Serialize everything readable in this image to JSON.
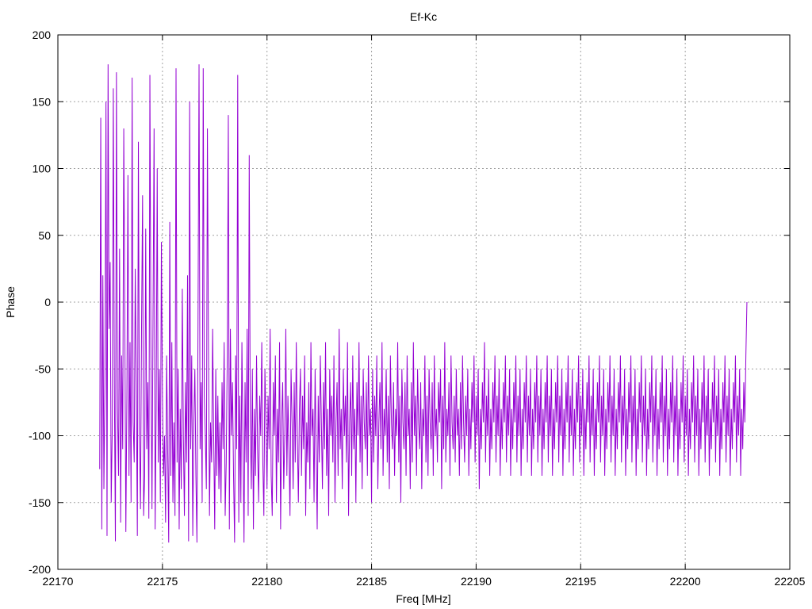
{
  "chart_data": {
    "type": "line",
    "title": "Ef-Kc",
    "xlabel": "Freq [MHz]",
    "ylabel": "Phase",
    "xlim": [
      22170,
      22205
    ],
    "ylim": [
      -200,
      200
    ],
    "x_ticks": [
      22170,
      22175,
      22180,
      22185,
      22190,
      22195,
      22200,
      22205
    ],
    "y_ticks": [
      -200,
      -150,
      -100,
      -50,
      0,
      50,
      100,
      150,
      200
    ],
    "x_tick_labels": [
      "22170",
      "22175",
      "22180",
      "22185",
      "22190",
      "22195",
      "22200",
      "22205"
    ],
    "y_tick_labels": [
      "-200",
      "-150",
      "-100",
      "-50",
      "0",
      "50",
      "100",
      "150",
      "200"
    ],
    "grid": true,
    "legend": "none",
    "series": [
      {
        "color": "#9400d3",
        "x_start": 22172.0,
        "x_step": 0.05,
        "y": [
          -125,
          138,
          -170,
          20,
          -140,
          -60,
          150,
          -175,
          178,
          -20,
          30,
          -150,
          -95,
          160,
          -60,
          -179,
          172,
          -80,
          -130,
          40,
          -165,
          -40,
          -110,
          130,
          -10,
          -172,
          -70,
          95,
          -130,
          -30,
          -150,
          168,
          -90,
          -120,
          25,
          -60,
          -175,
          120,
          -100,
          -155,
          -20,
          80,
          -160,
          -130,
          55,
          -110,
          -60,
          -162,
          170,
          -40,
          -155,
          -10,
          130,
          -170,
          -80,
          100,
          -120,
          -50,
          -150,
          45,
          -70,
          -130,
          -100,
          -165,
          -40,
          -110,
          -180,
          60,
          -130,
          -30,
          -150,
          -90,
          -160,
          175,
          -120,
          -50,
          -170,
          -80,
          -140,
          10,
          -100,
          -160,
          -60,
          -120,
          20,
          -179,
          150,
          -110,
          -40,
          -175,
          -90,
          -50,
          -130,
          -180,
          -20,
          178,
          -110,
          -60,
          -150,
          175,
          -70,
          -100,
          -140,
          130,
          -30,
          -160,
          -90,
          -120,
          -20,
          -100,
          -170,
          -50,
          -130,
          -70,
          -140,
          -90,
          -150,
          -60,
          -110,
          -30,
          -160,
          -120,
          -40,
          140,
          -170,
          -20,
          -100,
          -60,
          -130,
          -180,
          -40,
          -110,
          170,
          -165,
          -70,
          -150,
          -30,
          -100,
          -180,
          -60,
          -120,
          -20,
          -160,
          110,
          -90,
          -140,
          -50,
          -170,
          -80,
          -130,
          -40,
          -110,
          -150,
          -70,
          -100,
          -30,
          -120,
          -160,
          -50,
          -90,
          -140,
          -70,
          -110,
          -20,
          -130,
          -160,
          -60,
          -100,
          -40,
          -150,
          -80,
          -120,
          -30,
          -170,
          -90,
          -60,
          -140,
          -100,
          -20,
          -130,
          -70,
          -110,
          -160,
          -50,
          -90,
          -140,
          -60,
          -120,
          -30,
          -100,
          -150,
          -80,
          -50,
          -130,
          -70,
          -110,
          -40,
          -160,
          -90,
          -120,
          -60,
          -140,
          -30,
          -100,
          -80,
          -150,
          -50,
          -110,
          -170,
          -70,
          -120,
          -40,
          -90,
          -140,
          -60,
          -110,
          -30,
          -130,
          -80,
          -160,
          -50,
          -100,
          -70,
          -120,
          -40,
          -150,
          -90,
          -60,
          -130,
          -20,
          -110,
          -80,
          -140,
          -50,
          -100,
          -70,
          -120,
          -30,
          -160,
          -90,
          -60,
          -130,
          -40,
          -110,
          -80,
          -150,
          -60,
          -100,
          -30,
          -120,
          -70,
          -140,
          -50,
          -90,
          -110,
          -60,
          -130,
          -40,
          -100,
          -80,
          -150,
          -50,
          -120,
          -70,
          -100,
          -40,
          -140,
          -90,
          -60,
          -110,
          -30,
          -130,
          -80,
          -100,
          -50,
          -120,
          -70,
          -140,
          -40,
          -90,
          -110,
          -60,
          -130,
          -80,
          -100,
          -30,
          -120,
          -70,
          -150,
          -50,
          -90,
          -110,
          -60,
          -130,
          -40,
          -100,
          -80,
          -140,
          -60,
          -120,
          -30,
          -100,
          -70,
          -130,
          -50,
          -90,
          -110,
          -60,
          -140,
          -80,
          -100,
          -40,
          -120,
          -70,
          -130,
          -50,
          -90,
          -110,
          -60,
          -130,
          -40,
          -100,
          -80,
          -120,
          -60,
          -90,
          -50,
          -140,
          -70,
          -110,
          -30,
          -120,
          -80,
          -100,
          -60,
          -130,
          -40,
          -90,
          -110,
          -70,
          -120,
          -50,
          -100,
          -80,
          -130,
          -60,
          -110,
          -40,
          -90,
          -120,
          -70,
          -100,
          -50,
          -130,
          -80,
          -110,
          -60,
          -90,
          -40,
          -120,
          -70,
          -100,
          -50,
          -140,
          -80,
          -110,
          -60,
          -90,
          -30,
          -120,
          -70,
          -100,
          -50,
          -130,
          -80,
          -110,
          -60,
          -90,
          -40,
          -120,
          -70,
          -100,
          -50,
          -130,
          -80,
          -110,
          -60,
          -90,
          -40,
          -120,
          -70,
          -100,
          -50,
          -130,
          -80,
          -110,
          -60,
          -90,
          -40,
          -120,
          -70,
          -100,
          -50,
          -130,
          -80,
          -110,
          -60,
          -90,
          -40,
          -120,
          -70,
          -100,
          -50,
          -130,
          -80,
          -110,
          -60,
          -90,
          -40,
          -120,
          -70,
          -100,
          -50,
          -130,
          -80,
          -110,
          -60,
          -90,
          -40,
          -120,
          -70,
          -100,
          -50,
          -130,
          -80,
          -110,
          -60,
          -90,
          -40,
          -120,
          -70,
          -100,
          -50,
          -130,
          -80,
          -110,
          -60,
          -90,
          -40,
          -120,
          -70,
          -100,
          -50,
          -130,
          -80,
          -110,
          -60,
          -90,
          -40,
          -120,
          -70,
          -100,
          -50,
          -130,
          -80,
          -110,
          -60,
          -90,
          -40,
          -120,
          -70,
          -100,
          -50,
          -130,
          -80,
          -110,
          -60,
          -90,
          -40,
          -120,
          -70,
          -100,
          -50,
          -130,
          -80,
          -110,
          -60,
          -90,
          -40,
          -120,
          -70,
          -100,
          -50,
          -130,
          -80,
          -110,
          -60,
          -90,
          -40,
          -120,
          -70,
          -100,
          -50,
          -130,
          -80,
          -110,
          -60,
          -90,
          -40,
          -120,
          -70,
          -100,
          -50,
          -130,
          -80,
          -110,
          -60,
          -90,
          -40,
          -120,
          -70,
          -100,
          -50,
          -130,
          -80,
          -110,
          -60,
          -90,
          -40,
          -120,
          -70,
          -100,
          -50,
          -130,
          -80,
          -110,
          -60,
          -90,
          -40,
          -120,
          -70,
          -100,
          -50,
          -130,
          -80,
          -110,
          -60,
          -90,
          -40,
          -120,
          -70,
          -100,
          -50,
          -130,
          -80,
          -110,
          -60,
          -90,
          -40,
          -120,
          -70,
          -100,
          -50,
          -130,
          -80,
          -110,
          -60,
          -90,
          -40,
          -120,
          -70,
          -100,
          -50,
          -130,
          -80,
          -110,
          -60,
          -90,
          -40,
          -120,
          -70,
          -100,
          -50,
          -130,
          -80,
          -110,
          -60,
          -90,
          -40,
          -120,
          -70,
          -100,
          -50,
          -130,
          -80,
          -110,
          -60,
          -90,
          -40,
          -120,
          -70,
          -100,
          -50,
          -130,
          -80,
          -110,
          -60,
          -90,
          -40,
          -120,
          -70,
          -100,
          -50,
          -130,
          -80,
          -110,
          -60,
          -90,
          -40,
          0
        ]
      }
    ]
  }
}
